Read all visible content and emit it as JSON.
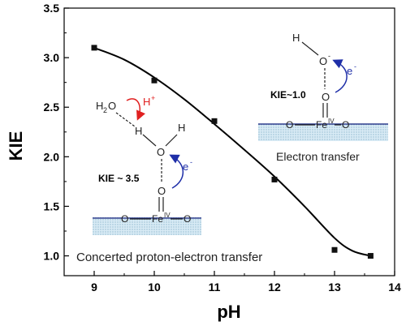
{
  "chart_data": {
    "type": "scatter",
    "xlabel": "pH",
    "ylabel": "KIE",
    "xlim": [
      8.5,
      14
    ],
    "ylim": [
      0.8,
      3.5
    ],
    "xticks": [
      9,
      10,
      11,
      12,
      13,
      14
    ],
    "yticks": [
      1.0,
      1.5,
      2.0,
      2.5,
      3.0,
      3.5
    ],
    "xtick_labels": [
      "9",
      "10",
      "11",
      "12",
      "13",
      "14"
    ],
    "ytick_labels": [
      "1.0",
      "1.5",
      "2.0",
      "2.5",
      "3.0",
      "3.5"
    ],
    "grid": false,
    "series": [
      {
        "points": [
          {
            "x": 9.0,
            "y": 3.1
          },
          {
            "x": 10.0,
            "y": 2.77
          },
          {
            "x": 11.0,
            "y": 2.36
          },
          {
            "x": 12.0,
            "y": 1.77
          },
          {
            "x": 13.0,
            "y": 1.06
          },
          {
            "x": 13.6,
            "y": 1.0
          }
        ],
        "fit_curve": [
          {
            "x": 9.0,
            "y": 3.1
          },
          {
            "x": 9.5,
            "y": 2.98
          },
          {
            "x": 10.0,
            "y": 2.8
          },
          {
            "x": 10.5,
            "y": 2.58
          },
          {
            "x": 11.0,
            "y": 2.33
          },
          {
            "x": 11.5,
            "y": 2.07
          },
          {
            "x": 12.0,
            "y": 1.8
          },
          {
            "x": 12.5,
            "y": 1.5
          },
          {
            "x": 13.0,
            "y": 1.18
          },
          {
            "x": 13.3,
            "y": 1.05
          },
          {
            "x": 13.6,
            "y": 1.0
          }
        ]
      }
    ],
    "colors": {
      "curve": "#000000",
      "marker": "#111111",
      "electron_arrow": "#1f2fa8",
      "proton_arrow": "#e02020",
      "surface_fill": "#cfe3ef",
      "surface_line": "#1a237e"
    },
    "annotations": {
      "right": {
        "oh_h": "H",
        "oh_o": "O",
        "oh_o_charge": "-",
        "e_label": "e",
        "e_charge": "-",
        "oxo_o": "O",
        "kie": "KIE~1.0",
        "surface_o_left": "O",
        "fe": "Fe",
        "fe_ox": "IV",
        "surface_o_right": "O",
        "caption": "Electron transfer"
      },
      "left": {
        "h2o": "H",
        "h2o_sub": "2",
        "h2o_o": "O",
        "h_plus": "H",
        "h_plus_charge": "+",
        "bridge_h": "H",
        "h2o_h": "H",
        "o_center": "O",
        "e_label": "e",
        "e_charge": "-",
        "kie": "KIE ~ 3.5",
        "oxo_o": "O",
        "surface_o_left": "O",
        "fe": "Fe",
        "fe_ox": "IV",
        "surface_o_right": "O",
        "caption": "Concerted proton-electron transfer"
      }
    }
  }
}
